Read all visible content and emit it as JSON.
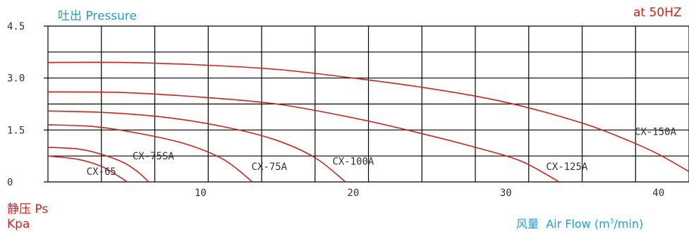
{
  "chart_data": {
    "type": "line",
    "ylabel": "吐出 Pressure",
    "ylabel_unit_1": "静压 Ps",
    "ylabel_unit_2": "Kpa",
    "xlabel_prefix": "风量",
    "xlabel_text": "Air Flow (m",
    "xlabel_sup": "3",
    "xlabel_suffix": "/min)",
    "annotation": "at  50HZ",
    "xlim": [
      0,
      42
    ],
    "ylim": [
      0,
      4.5
    ],
    "x_ticks": [
      10,
      20,
      30,
      40
    ],
    "y_ticks": [
      0,
      1.5,
      3.0,
      4.5
    ],
    "y_tick_labels": [
      "0",
      "1.5",
      "3.0",
      "4.5"
    ],
    "grid": true,
    "series_color": "#d4211b",
    "series": [
      {
        "name": "CX-65",
        "points": [
          [
            0,
            0.75
          ],
          [
            2,
            0.65
          ],
          [
            3.5,
            0.45
          ],
          [
            4.5,
            0.2
          ],
          [
            5.2,
            0
          ]
        ],
        "label_at": [
          3.5,
          0.2
        ]
      },
      {
        "name": "CX-75SA",
        "points": [
          [
            0,
            1.0
          ],
          [
            2,
            0.95
          ],
          [
            3.5,
            0.8
          ],
          [
            5,
            0.55
          ],
          [
            6,
            0.25
          ],
          [
            6.6,
            0
          ]
        ],
        "label_at": [
          6.9,
          0.65
        ]
      },
      {
        "name": "CX-75A",
        "points": [
          [
            0,
            1.65
          ],
          [
            3,
            1.6
          ],
          [
            6,
            1.4
          ],
          [
            9,
            1.1
          ],
          [
            11.5,
            0.65
          ],
          [
            13.4,
            0
          ]
        ],
        "label_at": [
          14.5,
          0.35
        ]
      },
      {
        "name": "CX-100A",
        "points": [
          [
            0,
            2.05
          ],
          [
            4,
            2.0
          ],
          [
            8,
            1.85
          ],
          [
            12,
            1.55
          ],
          [
            15,
            1.2
          ],
          [
            17.5,
            0.7
          ],
          [
            19.5,
            0
          ]
        ],
        "label_at": [
          20,
          0.5
        ]
      },
      {
        "name": "CX-125A",
        "points": [
          [
            0,
            2.6
          ],
          [
            5,
            2.58
          ],
          [
            10,
            2.45
          ],
          [
            15,
            2.25
          ],
          [
            20,
            1.85
          ],
          [
            24,
            1.45
          ],
          [
            28,
            1.0
          ],
          [
            31,
            0.6
          ],
          [
            33.5,
            0
          ]
        ],
        "label_at": [
          34,
          0.35
        ]
      },
      {
        "name": "CX-150A",
        "points": [
          [
            0,
            3.45
          ],
          [
            5,
            3.45
          ],
          [
            10,
            3.38
          ],
          [
            15,
            3.25
          ],
          [
            20,
            3.0
          ],
          [
            25,
            2.7
          ],
          [
            30,
            2.3
          ],
          [
            35,
            1.7
          ],
          [
            38,
            1.2
          ],
          [
            40,
            0.8
          ],
          [
            42,
            0.3
          ]
        ],
        "label_at": [
          39.8,
          1.35
        ]
      }
    ]
  }
}
